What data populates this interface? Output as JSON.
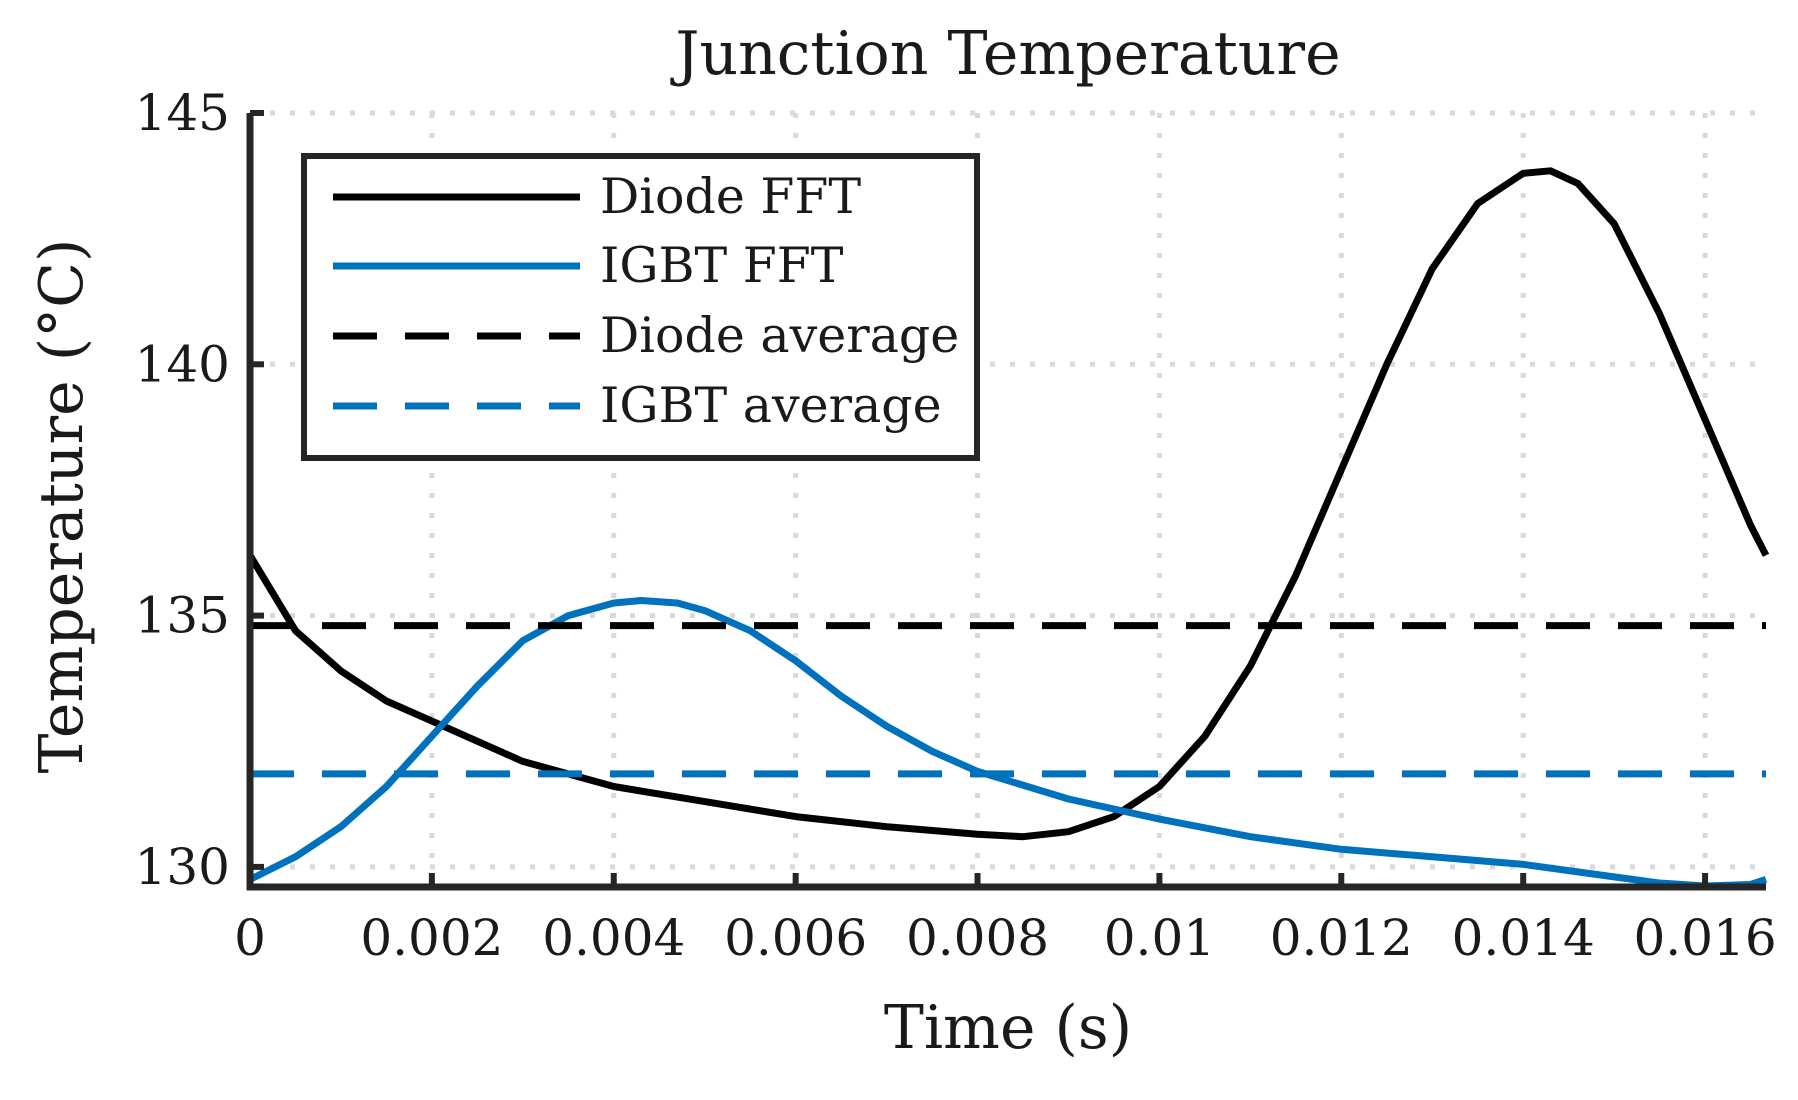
{
  "chart_data": {
    "type": "line",
    "title": "Junction Temperature",
    "xlabel": "Time (s)",
    "ylabel": "Temperature (°C)",
    "xlim": [
      0,
      0.01667
    ],
    "ylim": [
      129.6,
      145
    ],
    "xticks": [
      0,
      0.002,
      0.004,
      0.006,
      0.008,
      0.01,
      0.012,
      0.014,
      0.016
    ],
    "xtick_labels": [
      "0",
      "0.002",
      "0.004",
      "0.006",
      "0.008",
      "0.01",
      "0.012",
      "0.014",
      "0.016"
    ],
    "yticks": [
      130,
      135,
      140,
      145
    ],
    "ytick_labels": [
      "130",
      "135",
      "140",
      "145"
    ],
    "grid": true,
    "legend_position": "top-left",
    "series": [
      {
        "name": "Diode FFT",
        "color": "#000000",
        "style": "solid",
        "x": [
          0,
          0.0005,
          0.001,
          0.0015,
          0.002,
          0.003,
          0.004,
          0.005,
          0.006,
          0.007,
          0.008,
          0.0085,
          0.009,
          0.0095,
          0.01,
          0.0105,
          0.011,
          0.0115,
          0.012,
          0.0125,
          0.013,
          0.0135,
          0.014,
          0.0143,
          0.0146,
          0.015,
          0.0155,
          0.016,
          0.0165,
          0.01667
        ],
        "y": [
          136.2,
          134.7,
          133.9,
          133.3,
          132.9,
          132.1,
          131.6,
          131.3,
          131.0,
          130.8,
          130.65,
          130.6,
          130.7,
          131.0,
          131.6,
          132.6,
          134.0,
          135.8,
          137.9,
          140.0,
          141.9,
          143.2,
          143.8,
          143.85,
          143.6,
          142.8,
          141.0,
          138.9,
          136.8,
          136.2
        ]
      },
      {
        "name": "IGBT FFT",
        "color": "#0072BD",
        "style": "solid",
        "x": [
          0,
          0.0005,
          0.001,
          0.0015,
          0.002,
          0.0025,
          0.003,
          0.0035,
          0.004,
          0.0043,
          0.0047,
          0.005,
          0.0055,
          0.006,
          0.0065,
          0.007,
          0.0075,
          0.008,
          0.009,
          0.01,
          0.011,
          0.012,
          0.013,
          0.014,
          0.015,
          0.0155,
          0.016,
          0.0165,
          0.01667
        ],
        "y": [
          129.75,
          130.2,
          130.8,
          131.6,
          132.6,
          133.6,
          134.5,
          135.0,
          135.25,
          135.3,
          135.25,
          135.1,
          134.7,
          134.1,
          133.4,
          132.8,
          132.3,
          131.9,
          131.35,
          130.95,
          130.6,
          130.35,
          130.2,
          130.05,
          129.8,
          129.68,
          129.62,
          129.65,
          129.75
        ]
      },
      {
        "name": "Diode average",
        "color": "#000000",
        "style": "dashed",
        "x": [
          0,
          0.01667
        ],
        "y": [
          134.8,
          134.8
        ]
      },
      {
        "name": "IGBT average",
        "color": "#0072BD",
        "style": "dashed",
        "x": [
          0,
          0.01667
        ],
        "y": [
          131.85,
          131.85
        ]
      }
    ]
  }
}
